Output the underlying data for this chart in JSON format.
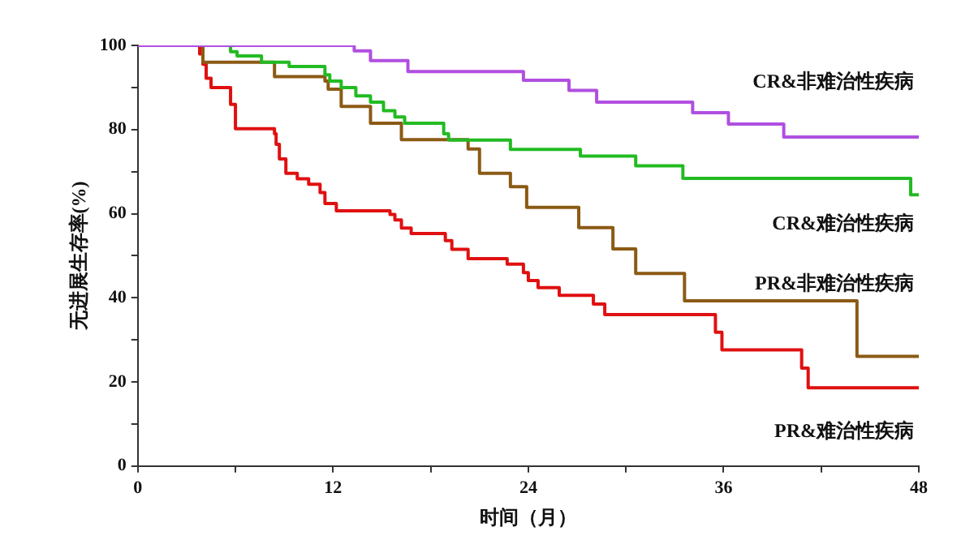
{
  "chart_data": {
    "type": "step",
    "xlabel": "时间（月）",
    "ylabel": "无进展生存率(%)",
    "xlim": [
      0,
      48
    ],
    "xticks": [
      0,
      {
        "value": 6,
        "label": null
      },
      12,
      {
        "value": 18,
        "label": null
      },
      24,
      {
        "value": 30,
        "label": null
      },
      36,
      {
        "value": 42,
        "label": null
      },
      48
    ],
    "ylim": [
      0,
      100
    ],
    "yticks": [
      0,
      {
        "value": 10,
        "label": null
      },
      20,
      {
        "value": 30,
        "label": null
      },
      40,
      {
        "value": 50,
        "label": null
      },
      60,
      {
        "value": 70,
        "label": null
      },
      80,
      {
        "value": 90,
        "label": null
      },
      100
    ],
    "grid": false,
    "legend": false,
    "series": [
      {
        "name": "CR&非难治性疾病",
        "color": "#b04fe0",
        "x": [
          0,
          13.3,
          14.3,
          16.6,
          23.7,
          26.5,
          28.2,
          34.1,
          36.3,
          39.7,
          48
        ],
        "values": [
          100,
          98.7,
          96.4,
          93.8,
          91.7,
          89.3,
          86.5,
          84,
          81.3,
          78.2,
          78.2
        ]
      },
      {
        "name": "CR&难治性疾病",
        "color": "#22bb22",
        "x": [
          0,
          5.7,
          6.1,
          7.6,
          9.3,
          11.5,
          11.8,
          12.5,
          13.4,
          14.3,
          15.1,
          15.8,
          16.4,
          18.8,
          19.1,
          22.9,
          27.2,
          30.6,
          33.5,
          47.5,
          48
        ],
        "values": [
          100,
          98.5,
          97.5,
          96,
          95,
          93,
          91.5,
          90,
          88,
          86.5,
          84.5,
          83,
          81.5,
          79,
          77.5,
          75.3,
          73.7,
          71.4,
          68.4,
          64.5,
          64.5
        ]
      },
      {
        "name": "PR&非难治性疾病",
        "color": "#8b5a14",
        "x": [
          0,
          4,
          8.4,
          11.5,
          11.7,
          12.5,
          14.3,
          16.2,
          20.3,
          21,
          22.9,
          23.9,
          27.1,
          29.2,
          30.6,
          33.6,
          44.2,
          48
        ],
        "values": [
          100,
          96,
          92.6,
          91.5,
          89.6,
          85.5,
          81.5,
          77.6,
          75.4,
          69.6,
          66.4,
          61.5,
          56.7,
          51.6,
          45.8,
          39.3,
          26.1,
          26.1
        ]
      },
      {
        "name": "PR&难治性疾病",
        "color": "#e01010",
        "x": [
          0,
          3.8,
          4,
          4.2,
          4.5,
          5.7,
          6,
          8.4,
          8.5,
          8.7,
          9.1,
          9.8,
          10.5,
          11.2,
          11.5,
          12.2,
          15.5,
          15.8,
          16.2,
          16.8,
          18.9,
          19.3,
          20.3,
          22.7,
          23.7,
          24,
          24.6,
          25.9,
          28,
          28.7,
          35.5,
          35.9,
          40.8,
          41.2,
          48
        ],
        "values": [
          100,
          98,
          95.5,
          92.2,
          90,
          86,
          80.2,
          79,
          76.5,
          73,
          69.6,
          68.3,
          67,
          65,
          62.4,
          60.7,
          59.8,
          58.5,
          56.6,
          55.3,
          53.6,
          51.5,
          49.3,
          48,
          46,
          44.1,
          42.4,
          40.6,
          38.5,
          36,
          31.8,
          27.6,
          23.3,
          18.6,
          18.6
        ]
      }
    ]
  }
}
